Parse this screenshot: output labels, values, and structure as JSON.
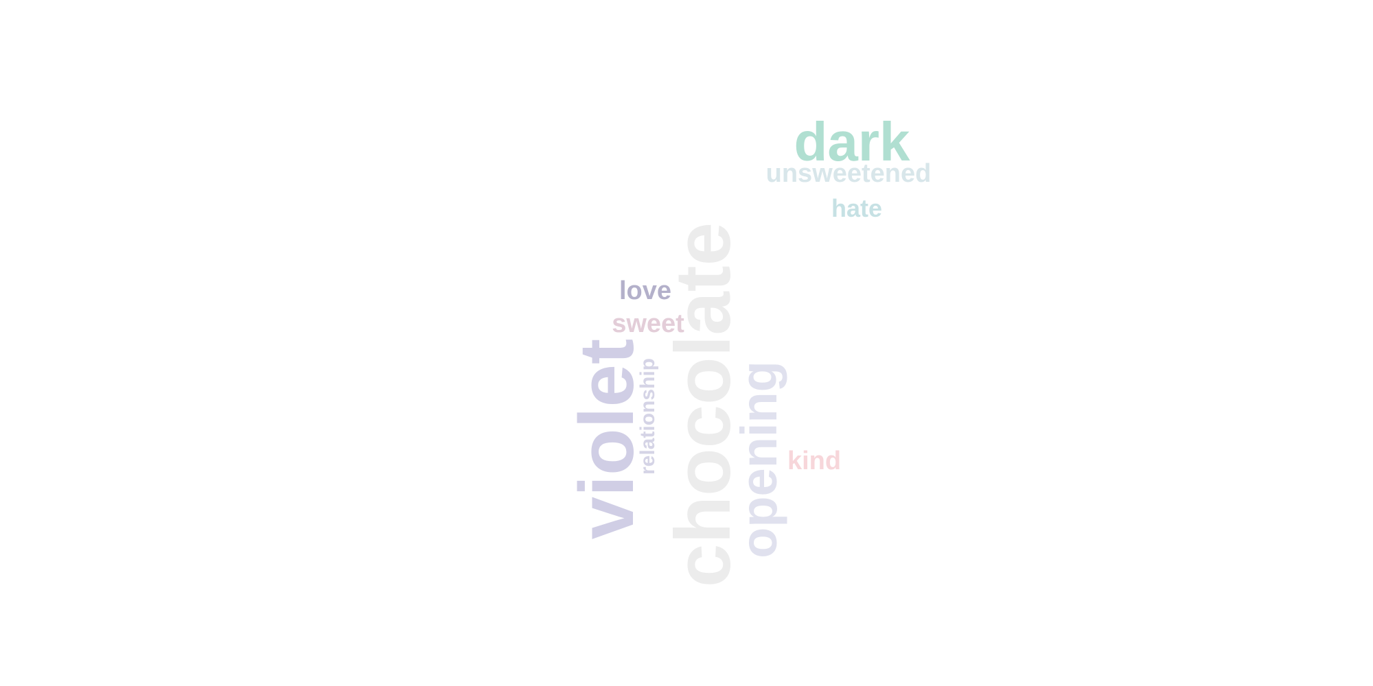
{
  "background": "#ffffff",
  "words": [
    {
      "id": "dark",
      "text": "dark",
      "color": "#b0dfd1",
      "orientation": "horizontal"
    },
    {
      "id": "unsweetened",
      "text": "unsweetened",
      "color": "#d8e6ea",
      "orientation": "horizontal"
    },
    {
      "id": "hate",
      "text": "hate",
      "color": "#c6e1e4",
      "orientation": "horizontal"
    },
    {
      "id": "love",
      "text": "love",
      "color": "#b3b0ca",
      "orientation": "horizontal"
    },
    {
      "id": "sweet",
      "text": "sweet",
      "color": "#e3cdd8",
      "orientation": "horizontal"
    },
    {
      "id": "violet",
      "text": "violet",
      "color": "#d0cee5",
      "orientation": "vertical"
    },
    {
      "id": "relationship",
      "text": "relationship",
      "color": "#d5d4e6",
      "orientation": "vertical"
    },
    {
      "id": "chocolate",
      "text": "chocolate",
      "color": "#ececec",
      "orientation": "vertical"
    },
    {
      "id": "opening",
      "text": "opening",
      "color": "#e0e1ee",
      "orientation": "vertical"
    },
    {
      "id": "kind",
      "text": "kind",
      "color": "#f7d6da",
      "orientation": "horizontal"
    }
  ]
}
